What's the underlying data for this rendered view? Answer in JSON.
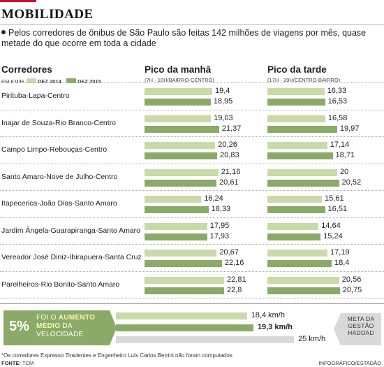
{
  "section_label": "MOBILIDADE",
  "intro": "Pelos corredores de ônibus de São Paulo são feitas 142 milhões de viagens por mês, quase metade do que ocorre em toda a cidade",
  "headers": {
    "corridors": "Corredores",
    "unit": "EM KM/H",
    "morning": "Pico da manhã",
    "morning_sub": "(7H - 10H/BAIRRO-CENTRO)",
    "evening": "Pico da tarde",
    "evening_sub": "(17H - 20H/CENTRO-BAIRRO)"
  },
  "legend": [
    {
      "label": "DEZ 2014",
      "color": "#c9daa8"
    },
    {
      "label": "DEZ 2015",
      "color": "#8aab67"
    }
  ],
  "chart_data": {
    "type": "bar",
    "unit": "km/h",
    "series": [
      {
        "name": "DEZ 2014",
        "color": "#c9daa8"
      },
      {
        "name": "DEZ 2015",
        "color": "#8aab67"
      }
    ],
    "rows": [
      {
        "name": "Pirituba-Lapa-Centro",
        "morning": [
          "19,4",
          "18,95"
        ],
        "evening": [
          "16,33",
          "16,53"
        ]
      },
      {
        "name": "Inajar de Souza-Rio Branco-Centro",
        "morning": [
          "19,03",
          "21,37"
        ],
        "evening": [
          "16,58",
          "19,97"
        ]
      },
      {
        "name": "Campo Limpo-Rebouças-Centro",
        "morning": [
          "20,26",
          "20,83"
        ],
        "evening": [
          "17,14",
          "18,71"
        ]
      },
      {
        "name": "Santo Amaro-Nove de Julho-Centro",
        "morning": [
          "21,16",
          "20,61"
        ],
        "evening": [
          "20",
          "20,52"
        ]
      },
      {
        "name": "Itapecerica-João Dias-Santo Amaro",
        "morning": [
          "16,24",
          "18,33"
        ],
        "evening": [
          "15,61",
          "16,51"
        ]
      },
      {
        "name": "Jardim Ângela-Guarapiranga-Santo Amaro",
        "morning": [
          "17,95",
          "17,93"
        ],
        "evening": [
          "14,64",
          "15,24"
        ]
      },
      {
        "name": "Vereador José Diniz-Ibirapuera-Santa Cruz",
        "morning": [
          "20,67",
          "22,16"
        ],
        "evening": [
          "17,19",
          "18,4"
        ]
      },
      {
        "name": "Parelheiros-Rio Bonito-Santo Amaro",
        "morning": [
          "22,81",
          "22,8"
        ],
        "evening": [
          "20,56",
          "20,75"
        ]
      }
    ],
    "summary": {
      "bars": [
        {
          "label": "18,4 km/h",
          "value": 18.4,
          "color": "#c9daa8"
        },
        {
          "label": "19,3 km/h",
          "value": 19.3,
          "color": "#8aab67"
        },
        {
          "label": "25 km/h",
          "value": 25,
          "color": "#d9d9d9"
        }
      ]
    }
  },
  "increase": {
    "percent": "5%",
    "line1_prefix": "FOI O ",
    "line1_em": "AUMENTO",
    "line2_em": "MÉDIO",
    "line2_suffix": " DA",
    "line3": "VELOCIDADE"
  },
  "goal": {
    "line1": "META DA",
    "line2": "GESTÃO",
    "line3": "HADDAD"
  },
  "footnote": "*Os corredores Expresso Tiradentes e Engenheiro Luís Carlos Berrini não foram computados",
  "source_label": "FONTE:",
  "source_value": " TCM",
  "credit": "INFOGRÁFICO/ESTADÃO"
}
